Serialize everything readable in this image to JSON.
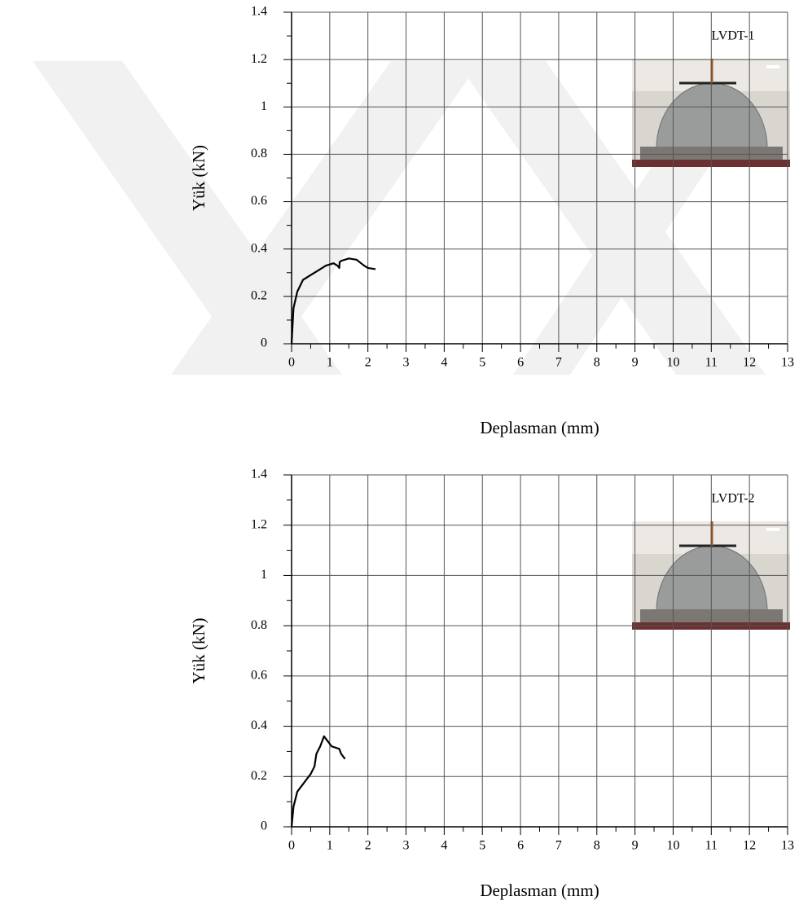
{
  "chart_data": [
    {
      "type": "line",
      "annotation": "LVDT-1",
      "xlabel": "Deplasman (mm)",
      "ylabel": "Yük (kN)",
      "x": [
        0,
        0.05,
        0.15,
        0.3,
        0.5,
        0.7,
        0.9,
        1.1,
        1.2,
        1.25,
        1.26,
        1.3,
        1.5,
        1.7,
        1.9,
        2.0,
        2.2
      ],
      "series": [
        {
          "color": "#000000",
          "values": [
            0,
            0.15,
            0.22,
            0.27,
            0.29,
            0.31,
            0.33,
            0.34,
            0.33,
            0.32,
            0.345,
            0.35,
            0.36,
            0.355,
            0.33,
            0.32,
            0.315
          ]
        }
      ],
      "xlim": [
        0,
        13
      ],
      "xticks": [
        0,
        1,
        2,
        3,
        4,
        5,
        6,
        7,
        8,
        9,
        10,
        11,
        12,
        13
      ],
      "ylim": [
        0,
        1.4
      ],
      "yticks": [
        0,
        0.2,
        0.4,
        0.6,
        0.8,
        1,
        1.2,
        1.4
      ],
      "grid": true
    },
    {
      "type": "line",
      "annotation": "LVDT-2",
      "xlabel": "Deplasman (mm)",
      "ylabel": "Yük (kN)",
      "x": [
        0,
        0.05,
        0.15,
        0.3,
        0.5,
        0.6,
        0.65,
        0.75,
        0.85,
        0.95,
        1.05,
        1.25,
        1.3,
        1.4
      ],
      "series": [
        {
          "color": "#000000",
          "values": [
            0,
            0.08,
            0.14,
            0.17,
            0.21,
            0.24,
            0.29,
            0.32,
            0.36,
            0.34,
            0.32,
            0.31,
            0.29,
            0.27
          ]
        }
      ],
      "xlim": [
        0,
        13
      ],
      "xticks": [
        0,
        1,
        2,
        3,
        4,
        5,
        6,
        7,
        8,
        9,
        10,
        11,
        12,
        13
      ],
      "ylim": [
        0,
        1.4
      ],
      "yticks": [
        0,
        0.2,
        0.4,
        0.6,
        0.8,
        1,
        1.2,
        1.4
      ],
      "grid": true
    }
  ]
}
